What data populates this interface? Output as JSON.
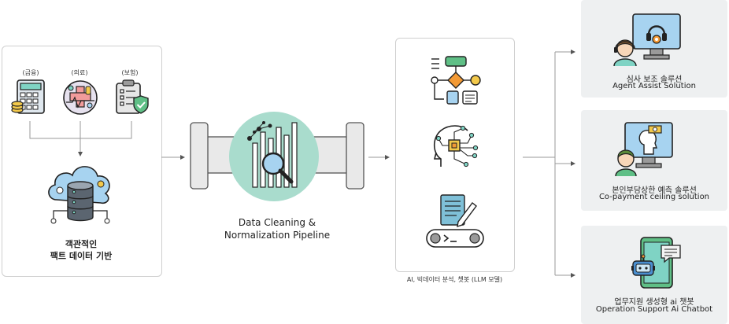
{
  "data_source": {
    "icons": [
      {
        "label": "(금융)",
        "icon": "calculator-icon"
      },
      {
        "label": "(의료)",
        "icon": "medical-icon"
      },
      {
        "label": "(보험)",
        "icon": "insurance-clipboard-icon"
      }
    ],
    "cloud_icon": "cloud-database-icon",
    "title_line1": "객관적인",
    "title_line2": "팩트 데이터 기반"
  },
  "pipeline": {
    "icon": "data-search-icon",
    "label_line1": "Data Cleaning &",
    "label_line2": "Normalization Pipeline"
  },
  "ai_box": {
    "icons": [
      "flowchart-icon",
      "ai-brain-icon",
      "document-conveyor-icon"
    ],
    "caption": "AI, 빅데이터 분석, 챗봇 (LLM 모델)"
  },
  "solutions": [
    {
      "icon": "agent-headset-icon",
      "title_ko": "심사 보조 솔루션",
      "title_en": "Agent Assist Solution"
    },
    {
      "icon": "copayment-icon",
      "title_ko": "본인부담상한 예측 솔루션",
      "title_en": "Co-payment ceiling solution"
    },
    {
      "icon": "chatbot-phone-icon",
      "title_ko": "업무지원 생성형 ai 챗봇",
      "title_en": "Operation Support Ai Chatbot"
    }
  ],
  "colors": {
    "accent_green": "#a9dccd",
    "icon_teal": "#7fd3c4",
    "icon_blue": "#a7d3f0",
    "line_gray": "#9a9a9a"
  }
}
